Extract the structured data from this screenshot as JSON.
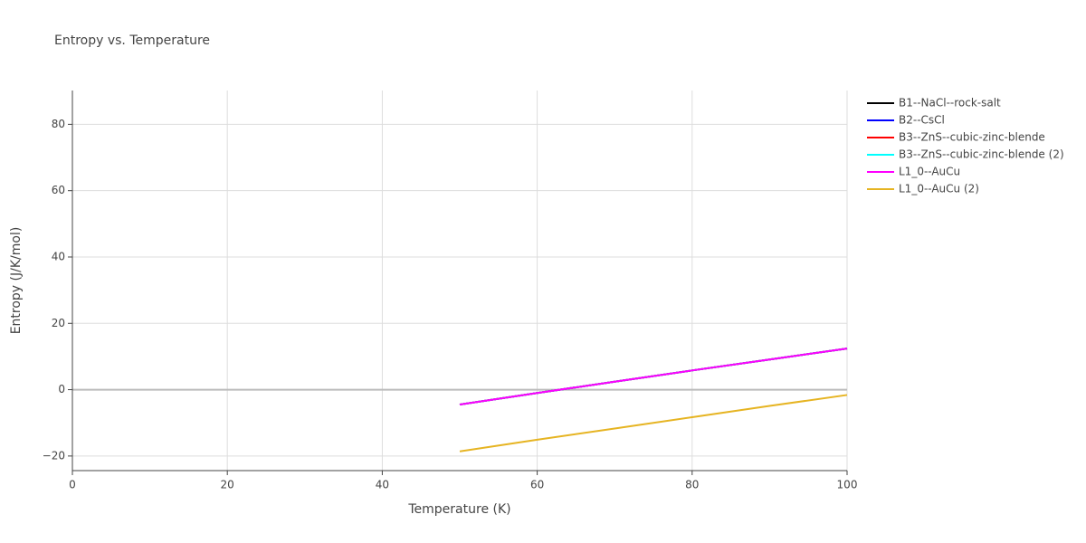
{
  "chart_data": {
    "type": "line",
    "title": "Entropy vs. Temperature",
    "x_label": "Temperature (K)",
    "y_label": "Entropy (J/K/mol)",
    "x": [
      50,
      60,
      70,
      80,
      90,
      100
    ],
    "series": [
      {
        "name": "B1--NaCl--rock-salt",
        "color": "#000000",
        "values": [
          -4.5,
          -1.0,
          2.4,
          5.8,
          9.1,
          12.4
        ]
      },
      {
        "name": "B2--CsCl",
        "color": "#0000ff",
        "values": [
          -4.5,
          -1.0,
          2.4,
          5.8,
          9.1,
          12.4
        ]
      },
      {
        "name": "B3--ZnS--cubic-zinc-blende",
        "color": "#ff0000",
        "values": [
          -4.5,
          -1.0,
          2.4,
          5.8,
          9.1,
          12.4
        ]
      },
      {
        "name": "B3--ZnS--cubic-zinc-blende (2)",
        "color": "#00ffff",
        "values": [
          -4.5,
          -1.0,
          2.4,
          5.8,
          9.1,
          12.4
        ]
      },
      {
        "name": "L1_0--AuCu",
        "color": "#ff00ff",
        "values": [
          -4.5,
          -1.0,
          2.4,
          5.8,
          9.1,
          12.4
        ]
      },
      {
        "name": "L1_0--AuCu (2)",
        "color": "#e6b422",
        "values": [
          -18.6,
          -15.1,
          -11.7,
          -8.3,
          -4.9,
          -1.6
        ]
      }
    ],
    "xlim": [
      0,
      100
    ],
    "xticks": [
      0,
      20,
      40,
      60,
      80,
      100
    ],
    "ylim": [
      -24.4,
      90.2
    ],
    "yticks": [
      {
        "value": -20,
        "label": "−20"
      },
      0,
      20,
      40,
      60,
      80
    ],
    "grid": true,
    "legend": "right"
  }
}
